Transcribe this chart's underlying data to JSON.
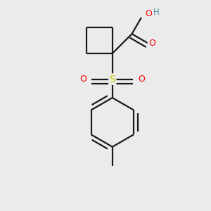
{
  "background_color": "#ebebeb",
  "bond_color": "#1a1a1a",
  "bond_width": 1.6,
  "colors": {
    "O": "#ff0000",
    "S": "#cccc00",
    "H": "#4a90a4",
    "C": "#1a1a1a"
  },
  "figsize": [
    3.0,
    3.0
  ],
  "dpi": 100
}
